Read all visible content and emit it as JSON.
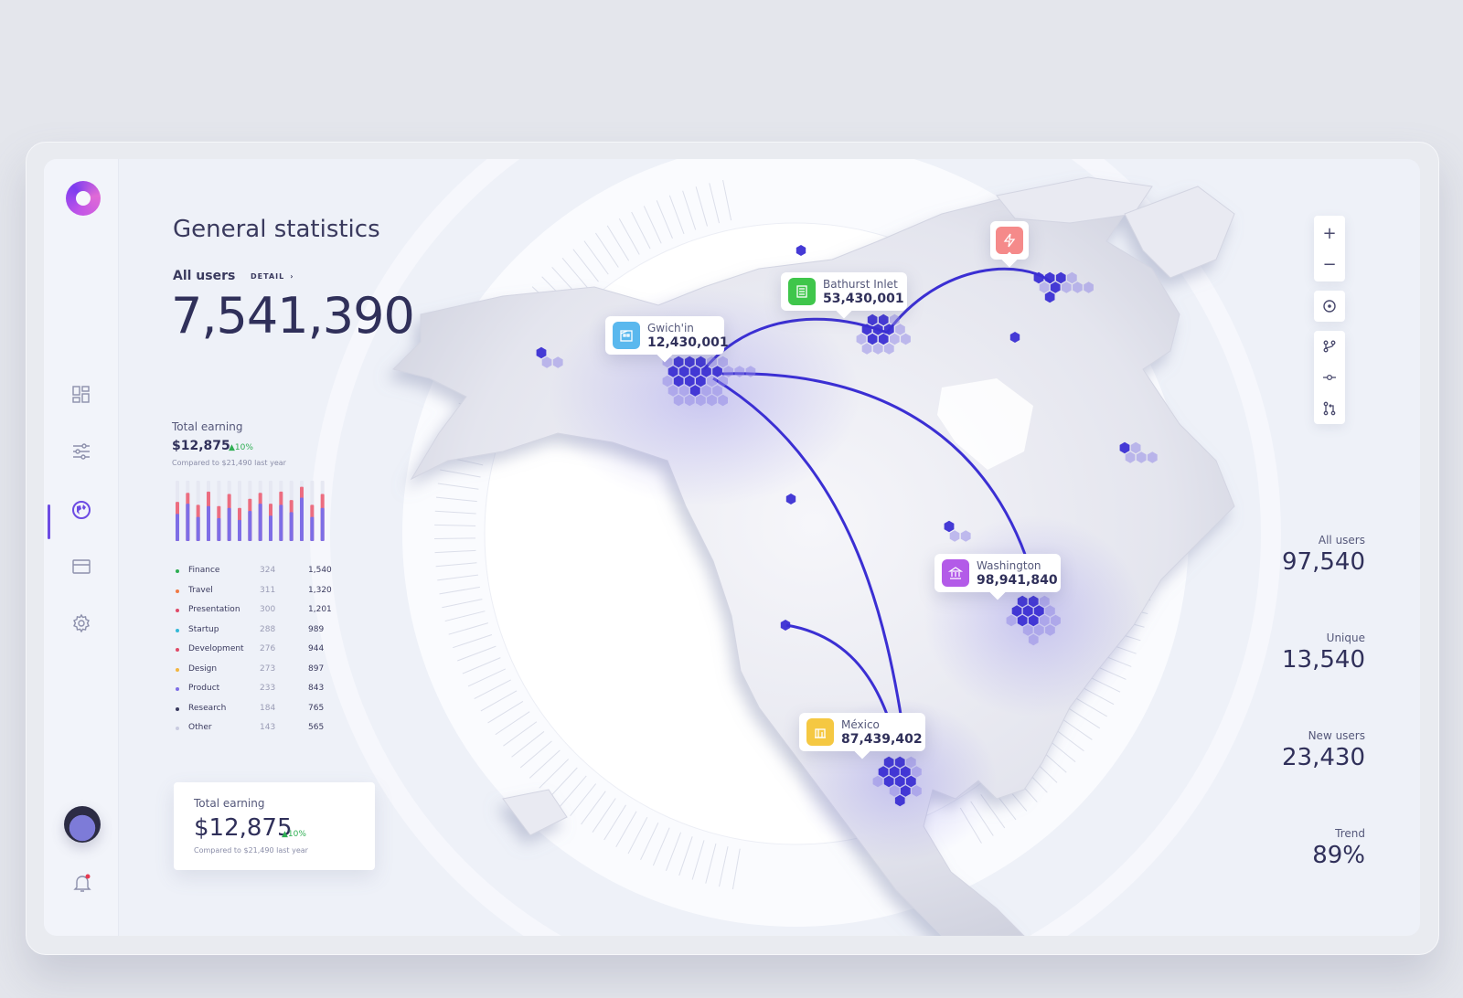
{
  "page": {
    "title": "General statistics",
    "all_users_label": "All users",
    "detail_link": "DETAIL",
    "all_users_value": "7,541,390"
  },
  "earning_summary": {
    "label": "Total earning",
    "value": "$12,875",
    "growth": "10%",
    "compare": "Compared to $21,490 last year"
  },
  "mini_chart": {
    "type": "bar",
    "series": [
      {
        "values": [
          0.45,
          0.62,
          0.4,
          0.58,
          0.38,
          0.55,
          0.35,
          0.5,
          0.62,
          0.42,
          0.6,
          0.48,
          0.72,
          0.4,
          0.55
        ],
        "color": "#7e6ee6"
      },
      {
        "values": [
          0.65,
          0.8,
          0.6,
          0.82,
          0.58,
          0.78,
          0.55,
          0.7,
          0.8,
          0.62,
          0.82,
          0.68,
          0.9,
          0.6,
          0.78
        ],
        "color": "#ec6d80"
      }
    ]
  },
  "categories": [
    {
      "name": "Finance",
      "count": "324",
      "total": "1,540",
      "color": "#2eae52"
    },
    {
      "name": "Travel",
      "count": "311",
      "total": "1,320",
      "color": "#f07a45"
    },
    {
      "name": "Presentation",
      "count": "300",
      "total": "1,201",
      "color": "#e04a68"
    },
    {
      "name": "Startup",
      "count": "288",
      "total": "989",
      "color": "#34b9d8"
    },
    {
      "name": "Development",
      "count": "276",
      "total": "944",
      "color": "#e04a68"
    },
    {
      "name": "Design",
      "count": "273",
      "total": "897",
      "color": "#f2b640"
    },
    {
      "name": "Product",
      "count": "233",
      "total": "843",
      "color": "#7e6ee6"
    },
    {
      "name": "Research",
      "count": "184",
      "total": "765",
      "color": "#3a3a5e"
    },
    {
      "name": "Other",
      "count": "143",
      "total": "565",
      "color": "#c9cbe0"
    }
  ],
  "earning_card": {
    "label": "Total earning",
    "value": "$12,875",
    "growth": "10%",
    "compare": "Compared to $21,490 last year"
  },
  "right_stats": [
    {
      "label": "All users",
      "value": "97,540"
    },
    {
      "label": "Unique",
      "value": "13,540"
    },
    {
      "label": "New users",
      "value": "23,430"
    },
    {
      "label": "Trend",
      "value": "89%"
    }
  ],
  "callouts": [
    {
      "name": "Gwich'in",
      "value": "12,430,001",
      "icon": "building-icon",
      "color": "#5ab8ee"
    },
    {
      "name": "Bathurst Inlet",
      "value": "53,430,001",
      "icon": "office-icon",
      "color": "#3fc64b"
    },
    {
      "name": "Washington",
      "value": "98,941,840",
      "icon": "bank-icon",
      "color": "#b35be8"
    },
    {
      "name": "México",
      "value": "87,439,402",
      "icon": "store-icon",
      "color": "#f5c842"
    }
  ],
  "solo_callout": {
    "icon": "bolt-icon",
    "color": "#f58a8a"
  },
  "zoom_controls": {
    "zoom_in": "+",
    "zoom_out": "−"
  },
  "colors": {
    "accent": "#3b2fd3",
    "hex_light": "#8d84e6"
  },
  "icons": [
    "dashboard-icon",
    "sliders-icon",
    "globe-icon",
    "card-icon",
    "gear-icon",
    "bell-icon",
    "target-icon",
    "branch-icon",
    "commit-icon",
    "pull-request-icon"
  ]
}
